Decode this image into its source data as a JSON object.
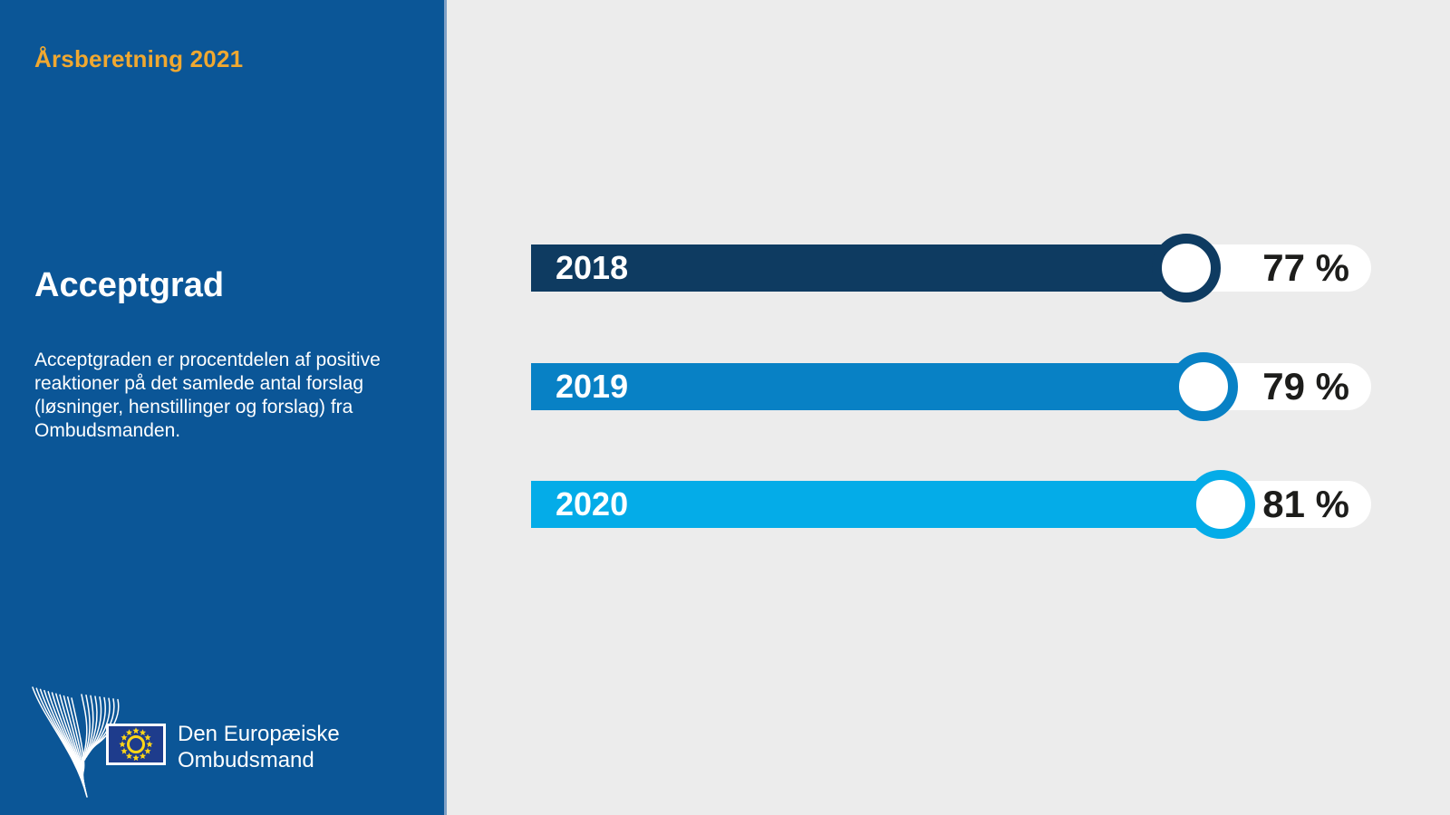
{
  "sidebar": {
    "report_title": "Årsberetning 2021",
    "heading": "Acceptgrad",
    "description": "Acceptgraden er procentdelen af positive reaktioner på det samlede antal forslag (løsninger, henstillinger og forslag) fra Ombudsmanden.",
    "logo": {
      "org_name_line1": "Den Europæiske",
      "org_name_line2": "Ombudsmand"
    },
    "colors": {
      "background": "#0B5697",
      "accent_yellow": "#F0A830",
      "divider": "#7FA0C6",
      "flag_blue": "#1E3C8C",
      "star_yellow": "#FFD617"
    }
  },
  "chart_data": {
    "type": "bar",
    "orientation": "horizontal",
    "title": "Acceptgrad",
    "categories": [
      "2018",
      "2019",
      "2020"
    ],
    "values": [
      77,
      79,
      81
    ],
    "unit": "%",
    "value_labels": [
      "77 %",
      "79 %",
      "81 %"
    ],
    "series_colors": [
      "#0E3B61",
      "#0881C5",
      "#04ACE8"
    ],
    "xlim": [
      0,
      100
    ],
    "grid": false,
    "legend": false,
    "background": "#ECECEC",
    "value_text_color": "#1D1D1B"
  }
}
